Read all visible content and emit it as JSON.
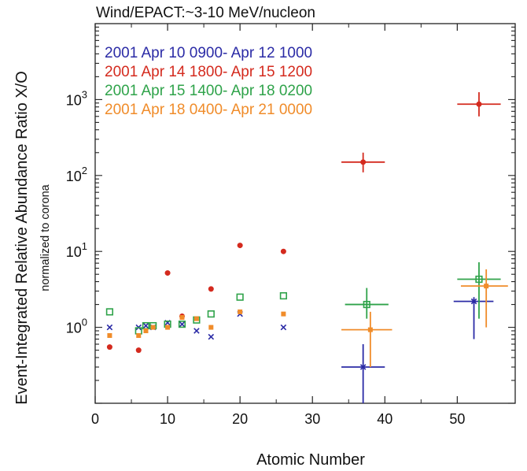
{
  "chart_data": {
    "type": "scatter",
    "title": "Wind/EPACT:~3-10 MeV/nucleon",
    "xlabel": "Atomic Number",
    "ylabel": "Event-Integrated Relative Abundance Ratio X/O",
    "ylabel_sub": "normalized to corona",
    "xlim": [
      0,
      58
    ],
    "ylim": [
      0.1,
      10000
    ],
    "yscale": "log",
    "x_ticks": [
      0,
      10,
      20,
      30,
      40,
      50
    ],
    "y_ticks": [
      {
        "value": 1,
        "base": "10",
        "exp": "0"
      },
      {
        "value": 10,
        "base": "10",
        "exp": "1"
      },
      {
        "value": 100,
        "base": "10",
        "exp": "2"
      },
      {
        "value": 1000,
        "base": "10",
        "exp": "3"
      }
    ],
    "grid": false,
    "legend_position": "top-left",
    "series": [
      {
        "name": "2001 Apr 10  0900- Apr 12  1000",
        "color": "#2b2ba6",
        "marker": "x",
        "points": [
          {
            "x": 2,
            "y": 1.0
          },
          {
            "x": 6,
            "y": 1.0
          },
          {
            "x": 7,
            "y": 1.05
          },
          {
            "x": 8,
            "y": 1.0
          },
          {
            "x": 10,
            "y": 1.15
          },
          {
            "x": 12,
            "y": 1.1
          },
          {
            "x": 14,
            "y": 0.9
          },
          {
            "x": 16,
            "y": 0.75
          },
          {
            "x": 20,
            "y": 1.5
          },
          {
            "x": 26,
            "y": 1.0
          },
          {
            "x": 37,
            "y": 0.3,
            "xerr": [
              34,
              40
            ],
            "yerr": [
              0.1,
              0.6
            ]
          },
          {
            "x": 52.3,
            "y": 2.2,
            "xerr": [
              49.5,
              55
            ],
            "yerr": [
              0.7,
              2.5
            ]
          }
        ]
      },
      {
        "name": "2001 Apr 14  1800- Apr 15  1200",
        "color": "#d42a1e",
        "marker": "dot",
        "points": [
          {
            "x": 2,
            "y": 0.55
          },
          {
            "x": 6,
            "y": 0.5
          },
          {
            "x": 10,
            "y": 5.2
          },
          {
            "x": 12,
            "y": 1.4
          },
          {
            "x": 16,
            "y": 3.2
          },
          {
            "x": 20,
            "y": 12
          },
          {
            "x": 26,
            "y": 10
          },
          {
            "x": 37,
            "y": 150,
            "xerr": [
              34,
              40
            ],
            "yerr": [
              110,
              200
            ]
          },
          {
            "x": 53,
            "y": 870,
            "xerr": [
              50,
              56
            ],
            "yerr": [
              600,
              1250
            ]
          }
        ]
      },
      {
        "name": "2001 Apr 15  1400- Apr 18  0200",
        "color": "#2fa34a",
        "marker": "square-open",
        "points": [
          {
            "x": 2,
            "y": 1.6
          },
          {
            "x": 6,
            "y": 0.9
          },
          {
            "x": 7,
            "y": 1.05
          },
          {
            "x": 8,
            "y": 1.05
          },
          {
            "x": 10,
            "y": 1.1
          },
          {
            "x": 12,
            "y": 1.1
          },
          {
            "x": 14,
            "y": 1.25
          },
          {
            "x": 16,
            "y": 1.5
          },
          {
            "x": 20,
            "y": 2.5
          },
          {
            "x": 26,
            "y": 2.6
          },
          {
            "x": 37.5,
            "y": 2.0,
            "xerr": [
              34.5,
              40.5
            ],
            "yerr": [
              1.3,
              3.3
            ]
          },
          {
            "x": 53,
            "y": 4.3,
            "xerr": [
              50,
              56
            ],
            "yerr": [
              1.3,
              7.2
            ]
          }
        ]
      },
      {
        "name": "2001 Apr 18  0400- Apr  21  0000",
        "color": "#f08c2a",
        "marker": "square",
        "points": [
          {
            "x": 2,
            "y": 0.78
          },
          {
            "x": 6,
            "y": 0.78
          },
          {
            "x": 7,
            "y": 0.9
          },
          {
            "x": 8,
            "y": 1.0
          },
          {
            "x": 10,
            "y": 1.0
          },
          {
            "x": 12,
            "y": 1.35
          },
          {
            "x": 14,
            "y": 1.3
          },
          {
            "x": 16,
            "y": 1.0
          },
          {
            "x": 20,
            "y": 1.6
          },
          {
            "x": 26,
            "y": 1.5
          },
          {
            "x": 38,
            "y": 0.93,
            "xerr": [
              34,
              41
            ],
            "yerr": [
              0.3,
              1.6
            ]
          },
          {
            "x": 54,
            "y": 3.5,
            "xerr": [
              50.5,
              57
            ],
            "yerr": [
              1.0,
              5.8
            ]
          }
        ]
      }
    ]
  }
}
